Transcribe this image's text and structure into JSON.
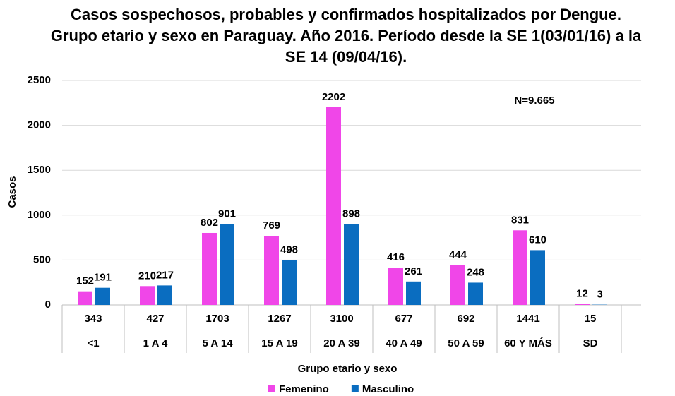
{
  "chart_data": {
    "type": "bar",
    "title": "Casos sospechosos, probables y confirmados hospitalizados por Dengue. Grupo etario y sexo en Paraguay. Año 2016. Período desde la SE 1(03/01/16) a la SE 14 (09/04/16).",
    "y_label": "Casos",
    "x_label": "Grupo etario y sexo",
    "annotation": "N=9.665",
    "categories": [
      "<1",
      "1 A 4",
      "5 A 14",
      "15 A 19",
      "20 A 39",
      "40 A 49",
      "50 A 59",
      "60 Y MÁS",
      "SD"
    ],
    "totals": [
      343,
      427,
      1703,
      1267,
      3100,
      677,
      692,
      1441,
      15
    ],
    "series": [
      {
        "name": "Femenino",
        "color": "#f046e8",
        "values": [
          152,
          210,
          802,
          769,
          2202,
          416,
          444,
          831,
          12
        ]
      },
      {
        "name": "Masculino",
        "color": "#0a6dc0",
        "values": [
          191,
          217,
          901,
          498,
          898,
          261,
          248,
          610,
          3
        ]
      }
    ],
    "ylim": [
      0,
      2500
    ],
    "yticks": [
      0,
      500,
      1000,
      1500,
      2000,
      2500
    ],
    "grid": true,
    "legend": "bottom"
  }
}
